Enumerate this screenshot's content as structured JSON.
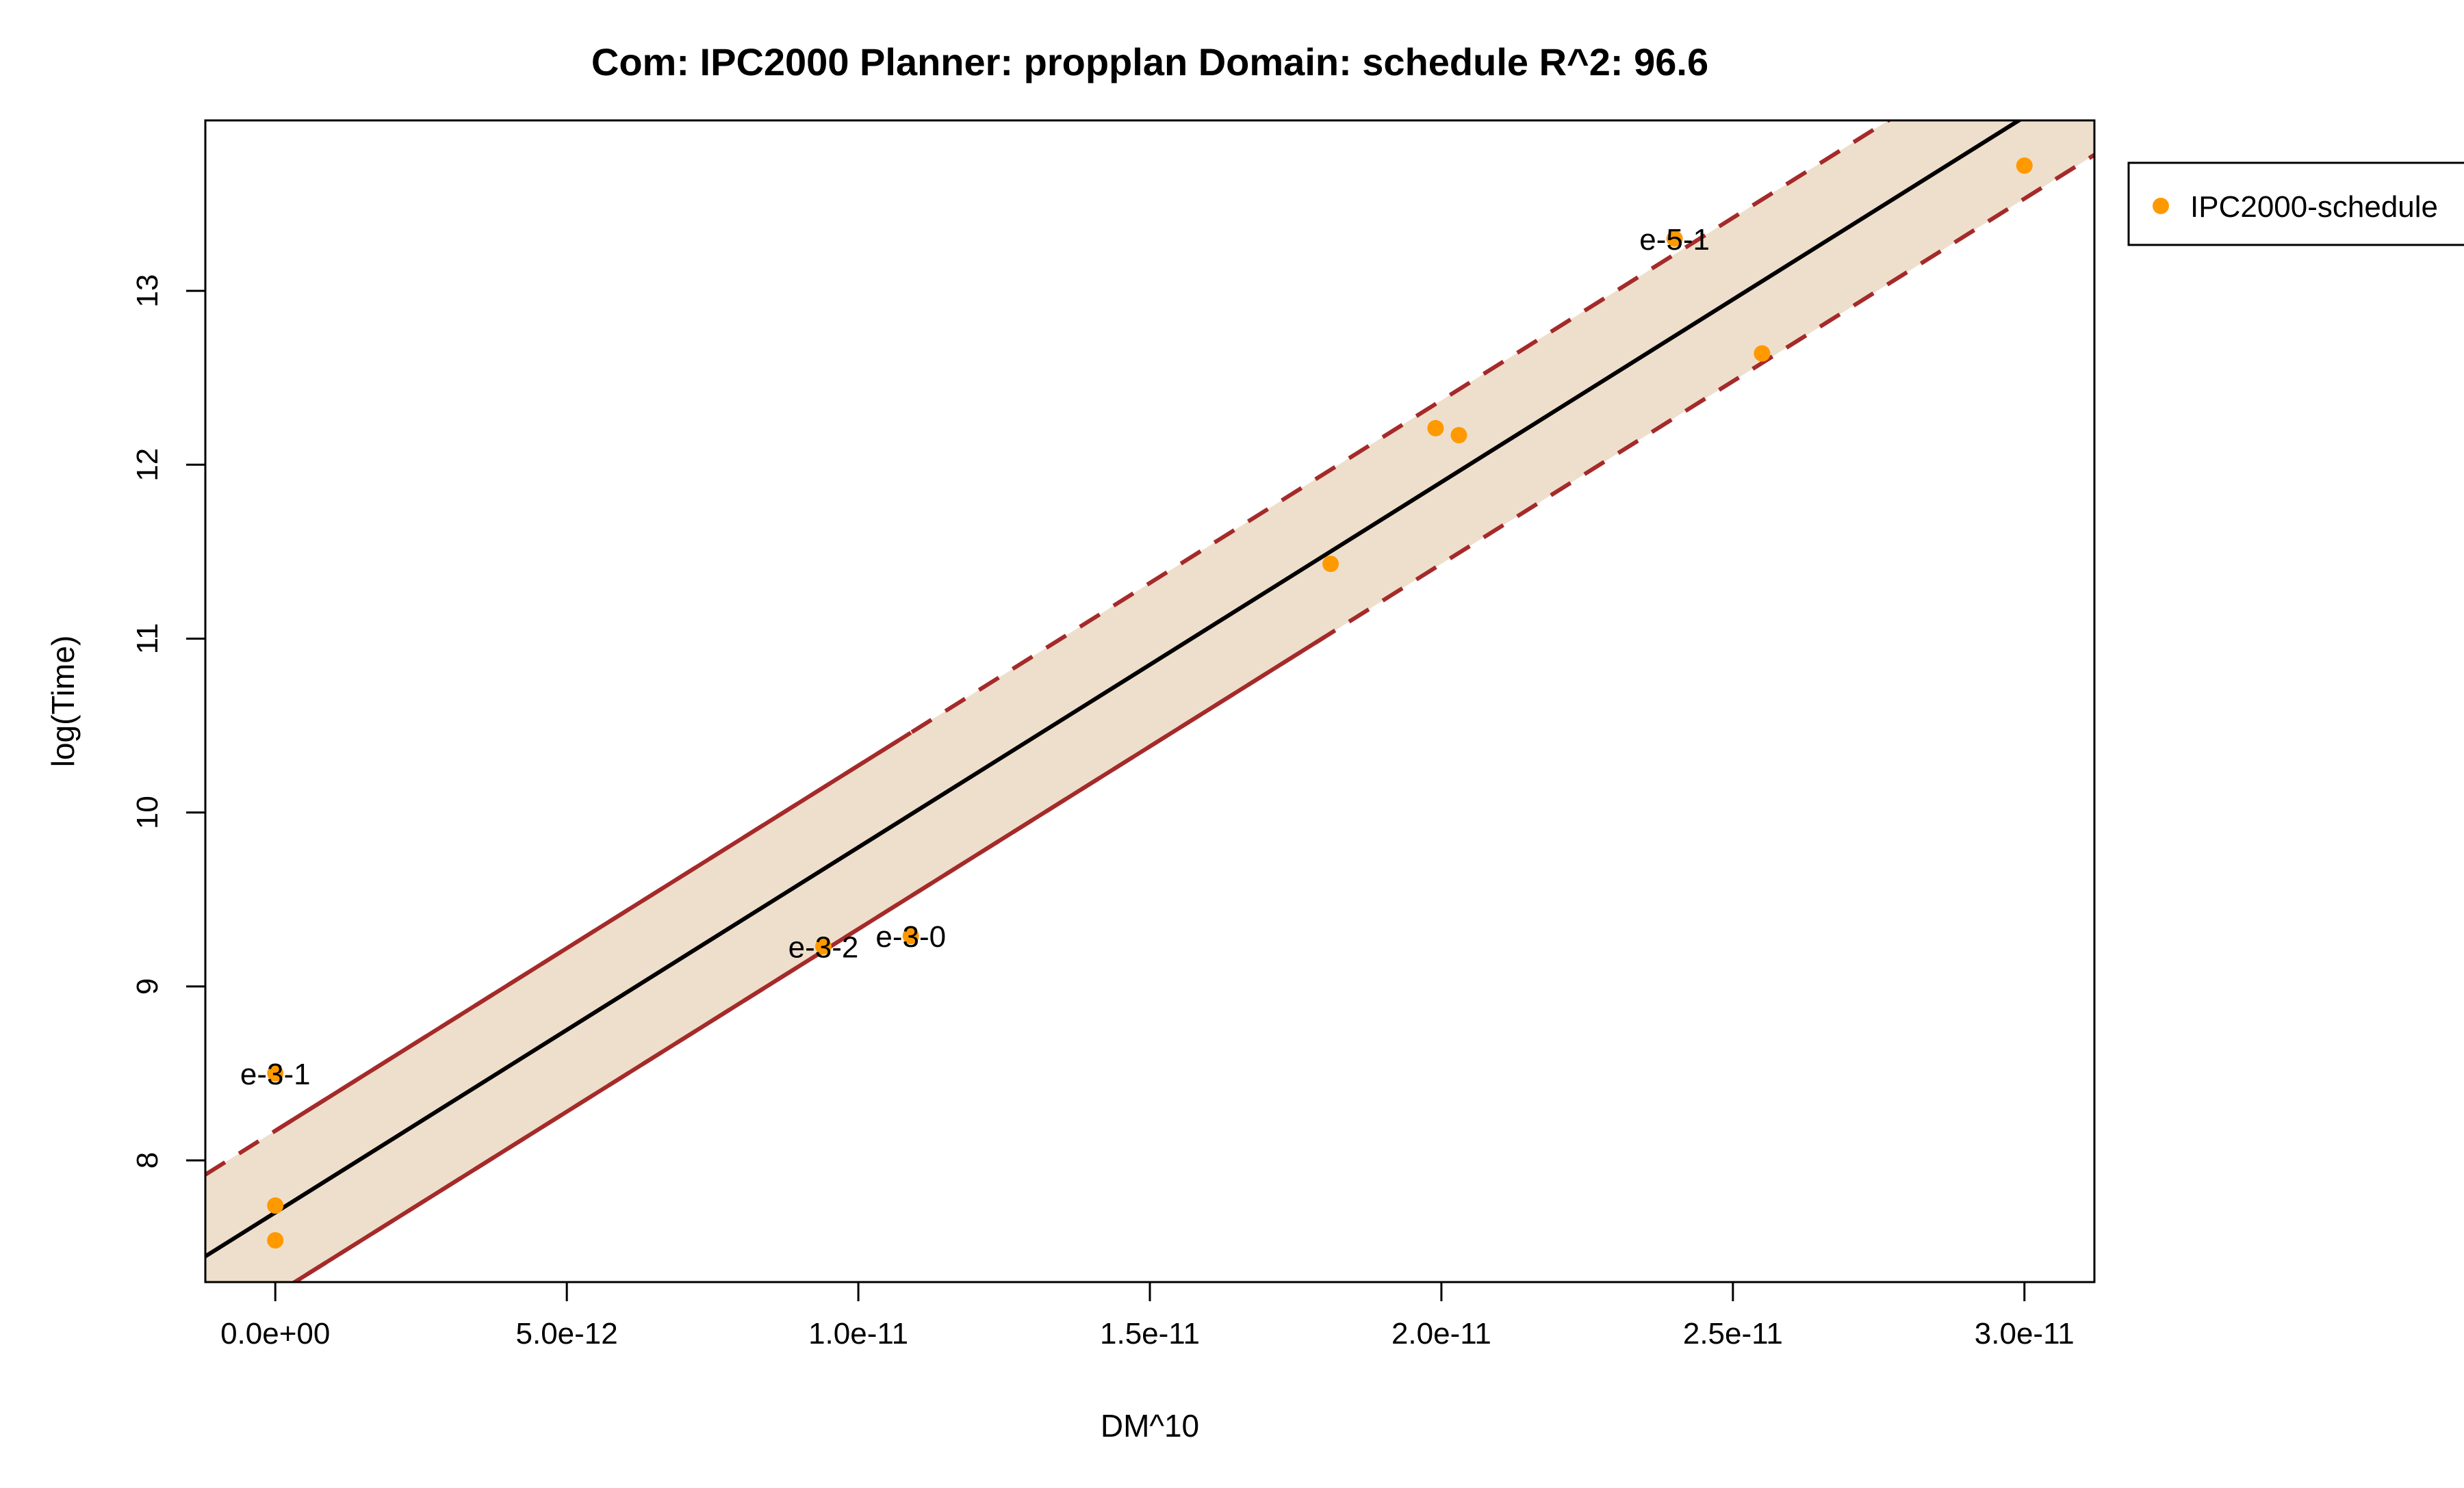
{
  "chart_data": {
    "type": "scatter",
    "title": "Com: IPC2000 Planner: propplan Domain: schedule R^2: 96.6",
    "xlabel": "DM^10",
    "ylabel": "log(Time)",
    "xlim": [
      -1.2e-12,
      3.12e-11
    ],
    "ylim": [
      7.3,
      13.98
    ],
    "x_ticks": [
      {
        "value": 0,
        "label": "0.0e+00"
      },
      {
        "value": 5e-12,
        "label": "5.0e-12"
      },
      {
        "value": 1e-11,
        "label": "1.0e-11"
      },
      {
        "value": 1.5e-11,
        "label": "1.5e-11"
      },
      {
        "value": 2e-11,
        "label": "2.0e-11"
      },
      {
        "value": 2.5e-11,
        "label": "2.5e-11"
      },
      {
        "value": 3e-11,
        "label": "3.0e-11"
      }
    ],
    "y_ticks": [
      {
        "value": 8,
        "label": "8"
      },
      {
        "value": 9,
        "label": "9"
      },
      {
        "value": 10,
        "label": "10"
      },
      {
        "value": 11,
        "label": "11"
      },
      {
        "value": 12,
        "label": "12"
      },
      {
        "value": 13,
        "label": "13"
      }
    ],
    "fit": {
      "intercept": 7.7,
      "slope": 210000000000.0,
      "band_halfwidth": 0.47,
      "band_solid_range": [
        {
          "from": -1.2e-12,
          "to": 1.8e-11,
          "side": "lower"
        },
        {
          "from": 0,
          "to": 1.09e-11,
          "side": "upper"
        }
      ]
    },
    "series": [
      {
        "name": "IPC2000-schedule",
        "color": "#FF9900",
        "points": [
          {
            "x": 0,
            "y": 8.5
          },
          {
            "x": 0,
            "y": 7.74
          },
          {
            "x": 0,
            "y": 7.54
          },
          {
            "x": 9.4e-12,
            "y": 9.23
          },
          {
            "x": 1.09e-11,
            "y": 9.29
          },
          {
            "x": 1.81e-11,
            "y": 11.43
          },
          {
            "x": 1.99e-11,
            "y": 12.21
          },
          {
            "x": 2.03e-11,
            "y": 12.17
          },
          {
            "x": 2.4e-11,
            "y": 13.3
          },
          {
            "x": 2.55e-11,
            "y": 12.64
          },
          {
            "x": 3e-11,
            "y": 13.72
          }
        ]
      }
    ],
    "annotations": [
      {
        "label": "e-3-1",
        "x": 0,
        "y": 8.5
      },
      {
        "label": "e-3-2",
        "x": 9.4e-12,
        "y": 9.23
      },
      {
        "label": "e-3-0",
        "x": 1.09e-11,
        "y": 9.29
      },
      {
        "label": "e-5-1",
        "x": 2.4e-11,
        "y": 13.3
      }
    ],
    "colors": {
      "band_fill": "#EEDFCC",
      "band_line": "#A52A2A",
      "fit_line": "#000000",
      "point": "#FF9900"
    },
    "legend": {
      "position": "right-outside-top",
      "entries": [
        "IPC2000-schedule"
      ]
    }
  }
}
